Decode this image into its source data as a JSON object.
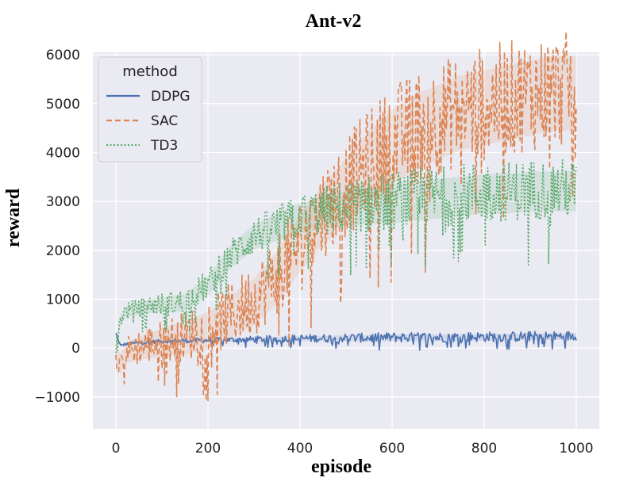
{
  "chart_data": {
    "type": "line",
    "title": "Ant-v2",
    "xlabel": "episode",
    "ylabel": "reward",
    "xlim": [
      -50,
      1050
    ],
    "ylim": [
      -1650,
      6050
    ],
    "xticks": [
      0,
      200,
      400,
      600,
      800,
      1000
    ],
    "yticks": [
      -1000,
      0,
      1000,
      2000,
      3000,
      4000,
      5000,
      6000
    ],
    "grid": true,
    "legend": {
      "title": "method",
      "position": "top-left"
    },
    "series": [
      {
        "name": "DDPG",
        "color": "#4c72b0",
        "dash": "solid",
        "x": [
          0,
          10,
          20,
          40,
          60,
          80,
          100,
          150,
          200,
          250,
          300,
          350,
          400,
          450,
          500,
          550,
          600,
          650,
          700,
          750,
          800,
          850,
          900,
          950,
          1000
        ],
        "y": [
          300,
          50,
          80,
          100,
          120,
          130,
          140,
          150,
          160,
          170,
          180,
          190,
          200,
          200,
          210,
          210,
          220,
          220,
          220,
          230,
          230,
          230,
          240,
          240,
          250
        ],
        "spread": 150
      },
      {
        "name": "SAC",
        "color": "#dd8452",
        "dash": "dashed",
        "x": [
          0,
          10,
          20,
          40,
          60,
          80,
          100,
          150,
          200,
          250,
          300,
          350,
          400,
          450,
          500,
          550,
          600,
          650,
          700,
          750,
          800,
          850,
          900,
          950,
          1000
        ],
        "y": [
          -100,
          -300,
          -100,
          0,
          50,
          100,
          150,
          250,
          400,
          700,
          1000,
          1500,
          2200,
          2800,
          3300,
          3800,
          4200,
          4500,
          4700,
          4900,
          5000,
          5100,
          5200,
          5300,
          5300
        ],
        "spread": 1700
      },
      {
        "name": "TD3",
        "color": "#55a868",
        "dash": "dotted",
        "x": [
          0,
          10,
          20,
          40,
          60,
          80,
          100,
          150,
          200,
          250,
          300,
          350,
          400,
          450,
          500,
          550,
          600,
          650,
          700,
          750,
          800,
          850,
          900,
          950,
          1000
        ],
        "y": [
          0,
          600,
          750,
          800,
          850,
          880,
          900,
          950,
          1300,
          1900,
          2300,
          2500,
          2700,
          2800,
          2900,
          2950,
          3000,
          3050,
          3100,
          3150,
          3200,
          3200,
          3250,
          3250,
          3250
        ],
        "spread": 900
      }
    ]
  }
}
